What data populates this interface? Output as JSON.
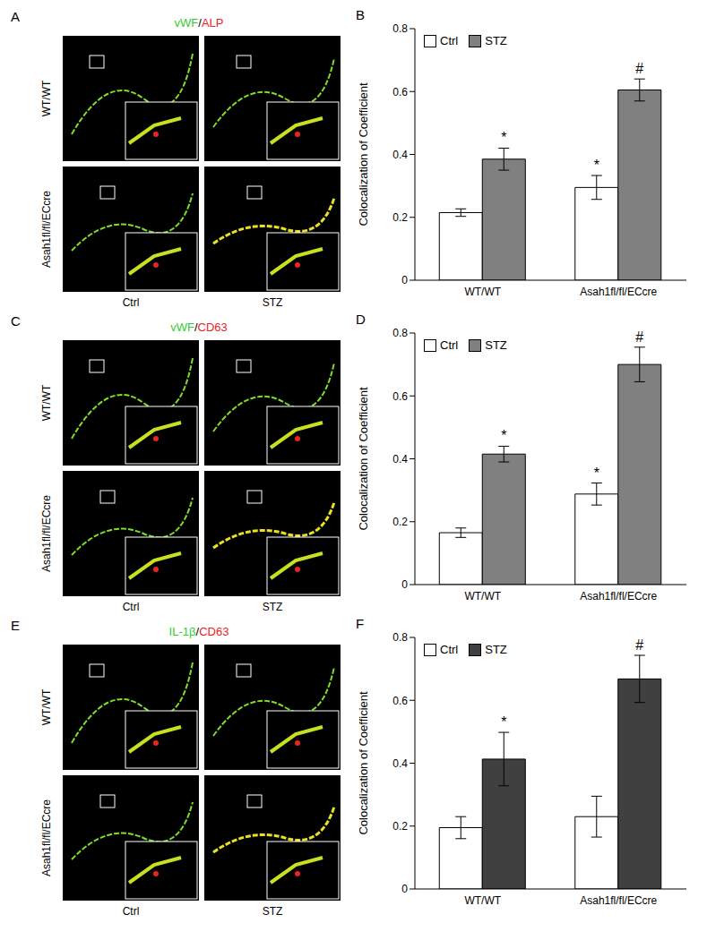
{
  "chart_data": [
    {
      "panel": "B",
      "type": "bar",
      "y_label": "Colocalization of Coefficient",
      "categories": [
        "WT/WT",
        "Asah1fl/fl/ECcre"
      ],
      "ylim": [
        0,
        0.8
      ],
      "yticks": [
        0,
        0.2,
        0.4,
        0.6,
        0.8
      ],
      "legend": "upper left",
      "series": [
        {
          "name": "Ctrl",
          "color": "#ffffff",
          "values": [
            0.215,
            0.295
          ],
          "errors": [
            0.012,
            0.038
          ],
          "annotations": [
            null,
            "*"
          ]
        },
        {
          "name": "STZ",
          "color": "#808080",
          "values": [
            0.385,
            0.605
          ],
          "errors": [
            0.035,
            0.035
          ],
          "annotations": [
            "*",
            "#"
          ]
        }
      ]
    },
    {
      "panel": "D",
      "type": "bar",
      "y_label": "Colocalization of Coefficient",
      "categories": [
        "WT/WT",
        "Asah1fl/fl/ECcre"
      ],
      "ylim": [
        0,
        0.8
      ],
      "yticks": [
        0,
        0.2,
        0.4,
        0.6,
        0.8
      ],
      "legend": "upper left",
      "series": [
        {
          "name": "Ctrl",
          "color": "#ffffff",
          "values": [
            0.165,
            0.288
          ],
          "errors": [
            0.015,
            0.035
          ],
          "annotations": [
            null,
            "*"
          ]
        },
        {
          "name": "STZ",
          "color": "#808080",
          "values": [
            0.415,
            0.7
          ],
          "errors": [
            0.025,
            0.055
          ],
          "annotations": [
            "*",
            "#"
          ]
        }
      ]
    },
    {
      "panel": "F",
      "type": "bar",
      "y_label": "Colocalization of Coefficient",
      "categories": [
        "WT/WT",
        "Asah1fl/fl/ECcre"
      ],
      "ylim": [
        0,
        0.8
      ],
      "yticks": [
        0,
        0.2,
        0.4,
        0.6,
        0.8
      ],
      "legend": "upper left",
      "series": [
        {
          "name": "Ctrl",
          "color": "#ffffff",
          "values": [
            0.195,
            0.23
          ],
          "errors": [
            0.035,
            0.065
          ],
          "annotations": [
            null,
            null
          ]
        },
        {
          "name": "STZ",
          "color": "#404040",
          "values": [
            0.413,
            0.668
          ],
          "errors": [
            0.085,
            0.075
          ],
          "annotations": [
            "*",
            "#"
          ]
        }
      ]
    }
  ],
  "image_panels": [
    {
      "panel": "A",
      "title_segments": [
        {
          "text": "vWF",
          "color": "#33cc33"
        },
        {
          "text": "/",
          "color": "#000000"
        },
        {
          "text": "ALP",
          "color": "#ee2222"
        }
      ],
      "rows": [
        "WT/WT",
        "Asah1fl/fl/ECcre"
      ],
      "columns": [
        "Ctrl",
        "STZ"
      ]
    },
    {
      "panel": "C",
      "title_segments": [
        {
          "text": "vWF",
          "color": "#33cc33"
        },
        {
          "text": "/",
          "color": "#000000"
        },
        {
          "text": "CD63",
          "color": "#ee2222"
        }
      ],
      "rows": [
        "WT/WT",
        "Asah1fl/fl/ECcre"
      ],
      "columns": [
        "Ctrl",
        "STZ"
      ]
    },
    {
      "panel": "E",
      "title_segments": [
        {
          "text": "IL-1β",
          "color": "#33cc33"
        },
        {
          "text": "/",
          "color": "#000000"
        },
        {
          "text": "CD63",
          "color": "#ee2222"
        }
      ],
      "rows": [
        "WT/WT",
        "Asah1fl/fl/ECcre"
      ],
      "columns": [
        "Ctrl",
        "STZ"
      ]
    }
  ]
}
